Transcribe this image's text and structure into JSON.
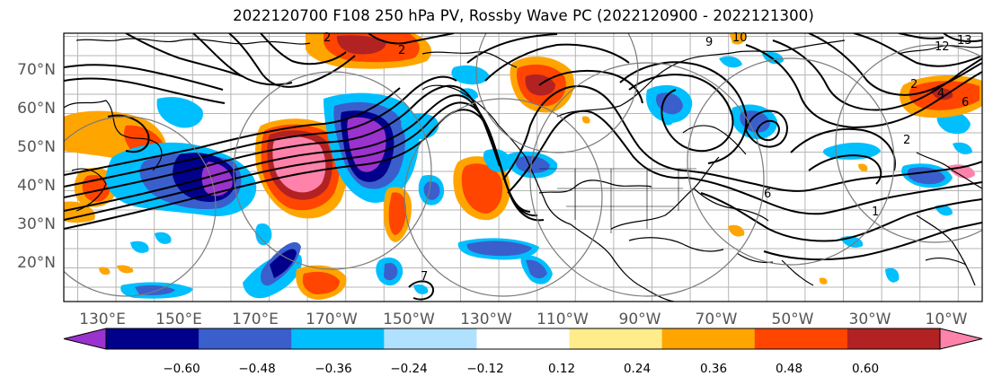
{
  "title": "2022120700 F108 250 hPa PV, Rossby Wave PC (2022120900 - 2022121300)",
  "map": {
    "lat_labels": [
      "20°N",
      "30°N",
      "40°N",
      "50°N",
      "60°N",
      "70°N"
    ],
    "lon_labels": [
      "130°E",
      "150°E",
      "170°E",
      "170°W",
      "150°W",
      "130°W",
      "110°W",
      "90°W",
      "70°W",
      "50°W",
      "30°W",
      "10°W"
    ],
    "contour_labels": [
      "2",
      "2",
      "9",
      "10",
      "12",
      "13",
      "2",
      "4",
      "6",
      "1",
      "7",
      "2",
      "6"
    ]
  },
  "colorbar": {
    "ticks": [
      "−0.60",
      "−0.48",
      "−0.36",
      "−0.24",
      "−0.12",
      "0.12",
      "0.24",
      "0.36",
      "0.48",
      "0.60"
    ],
    "colors": [
      "#9a32cd",
      "#00008b",
      "#3a5fcd",
      "#00bfff",
      "#b0e2ff",
      "#ffffff",
      "#ffec8b",
      "#ffa500",
      "#ff4500",
      "#b22222",
      "#ff82ab"
    ]
  }
}
